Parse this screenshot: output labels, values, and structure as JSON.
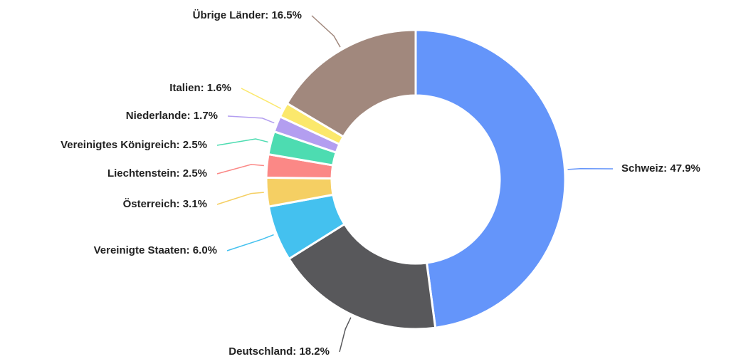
{
  "chart_data": {
    "type": "donut",
    "values": [
      47.9,
      18.2,
      6.0,
      3.1,
      2.5,
      2.5,
      1.7,
      1.6,
      16.5
    ],
    "value_labels": [
      "Schweiz: 47.9%",
      "Deutschland: 18.2%",
      "Vereinigte Staaten: 6.0%",
      "Österreich: 3.1%",
      "Liechtenstein: 2.5%",
      "Vereinigtes Königreich: 2.5%",
      "Niederlande: 1.7%",
      "Italien: 1.6%",
      "Übrige Länder: 16.5%"
    ],
    "colors": [
      "#6495fa",
      "#58585b",
      "#44c1ef",
      "#f5cf63",
      "#fb8886",
      "#4ddcb1",
      "#b39ef0",
      "#fbe86c",
      "#a1887d"
    ]
  }
}
